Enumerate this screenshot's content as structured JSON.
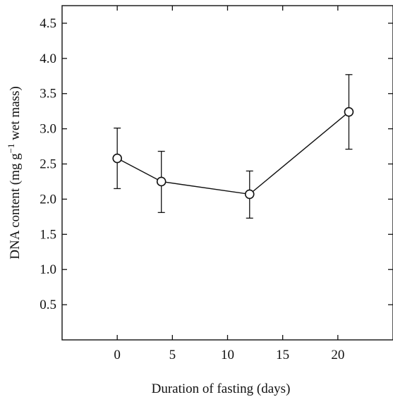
{
  "chart_data": {
    "type": "line",
    "xlabel": "Duration of fasting (days)",
    "ylabel_main": "DNA content (mg g",
    "ylabel_sup": "−1",
    "ylabel_tail": " wet mass)",
    "xlim": [
      -5,
      25
    ],
    "ylim": [
      0,
      4.75
    ],
    "xticks": [
      0,
      5,
      10,
      15,
      20
    ],
    "yticks": [
      0.5,
      1.0,
      1.5,
      2.0,
      2.5,
      3.0,
      3.5,
      4.0,
      4.5
    ],
    "xtick_labels": [
      "0",
      "5",
      "10",
      "15",
      "20"
    ],
    "ytick_labels": [
      "0.5",
      "1.0",
      "1.5",
      "2.0",
      "2.5",
      "3.0",
      "3.5",
      "4.0",
      "4.5"
    ],
    "grid": false,
    "series": [
      {
        "x": [
          0,
          4,
          12,
          21
        ],
        "y": [
          2.58,
          2.25,
          2.07,
          3.24
        ],
        "err_low": [
          2.15,
          1.81,
          1.73,
          2.71
        ],
        "err_high": [
          3.01,
          2.68,
          2.4,
          3.77
        ],
        "marker": "open-circle"
      }
    ]
  }
}
